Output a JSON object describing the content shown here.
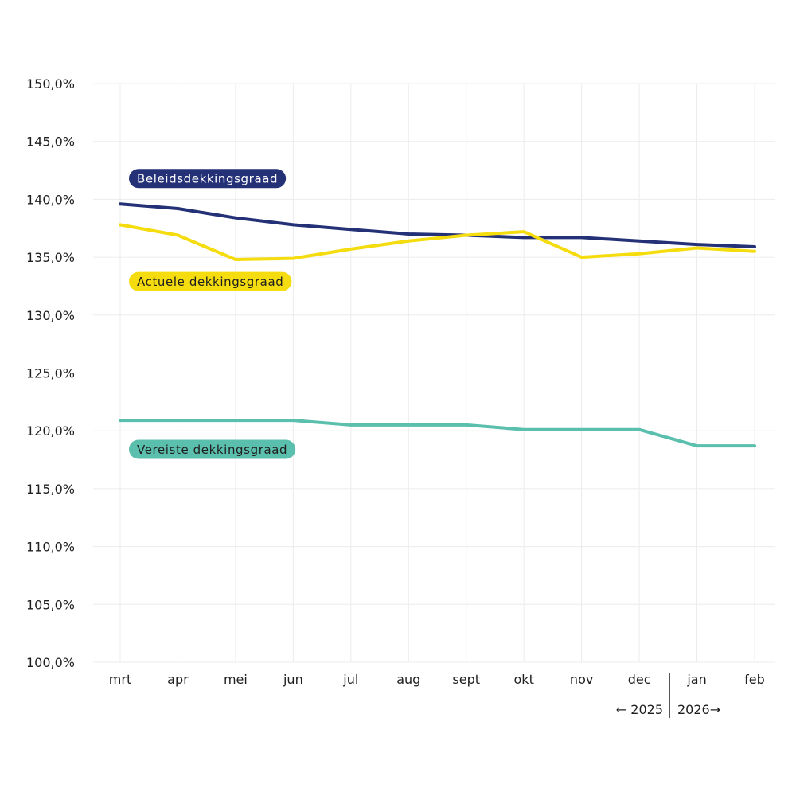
{
  "chart_data": {
    "type": "line",
    "categories": [
      "mrt",
      "apr",
      "mei",
      "jun",
      "jul",
      "aug",
      "sept",
      "okt",
      "nov",
      "dec",
      "jan",
      "feb"
    ],
    "ylim": [
      100,
      150
    ],
    "yticks": [
      "100,0%",
      "105,0%",
      "110,0%",
      "115,0%",
      "120,0%",
      "125,0%",
      "130,0%",
      "135,0%",
      "140,0%",
      "145,0%",
      "150,0%"
    ],
    "grid": true,
    "year_markers": {
      "left": "← 2025",
      "right": "2026→"
    },
    "series": [
      {
        "name": "Beleidsdekkingsgraad",
        "color": "#243177",
        "text_color": "#ffffff",
        "values": [
          139.6,
          139.2,
          138.4,
          137.8,
          137.4,
          137.0,
          136.9,
          136.7,
          136.7,
          136.4,
          136.1,
          135.9
        ]
      },
      {
        "name": "Actuele dekkingsgraad",
        "color": "#f5dc0f",
        "text_color": "#1f1f1f",
        "values": [
          137.8,
          136.9,
          134.8,
          134.9,
          135.7,
          136.4,
          136.9,
          137.2,
          135.0,
          135.3,
          135.8,
          135.5
        ]
      },
      {
        "name": "Vereiste dekkingsgraad",
        "color": "#5bbfad",
        "text_color": "#1f1f1f",
        "values": [
          120.9,
          120.9,
          120.9,
          120.9,
          120.5,
          120.5,
          120.5,
          120.1,
          120.1,
          120.1,
          118.7,
          118.7
        ]
      }
    ]
  }
}
